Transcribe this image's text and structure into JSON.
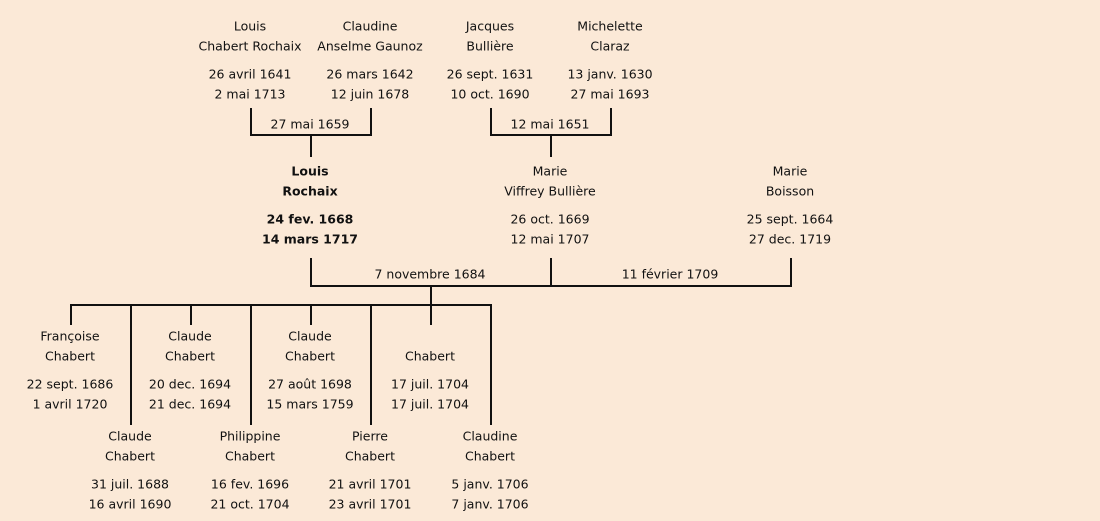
{
  "grandparents": [
    {
      "first": "Louis",
      "last": "Chabert Rochaix",
      "birth": "26 avril 1641",
      "death": "2 mai 1713"
    },
    {
      "first": "Claudine",
      "last": "Anselme Gaunoz",
      "birth": "26 mars 1642",
      "death": "12 juin 1678"
    },
    {
      "first": "Jacques",
      "last": "Bullière",
      "birth": "26 sept. 1631",
      "death": "10 oct. 1690"
    },
    {
      "first": "Michelette",
      "last": "Claraz",
      "birth": "13 janv. 1630",
      "death": "27 mai 1693"
    }
  ],
  "parents": [
    {
      "first": "Louis",
      "last": "Rochaix",
      "birth": "24 fev. 1668",
      "death": "14 mars 1717"
    },
    {
      "first": "Marie",
      "last": "Viffrey Bullière",
      "birth": "26 oct. 1669",
      "death": "12 mai 1707"
    },
    {
      "first": "Marie",
      "last": "Boisson",
      "birth": "25 sept. 1664",
      "death": "27 dec. 1719"
    }
  ],
  "marriages": [
    "27 mai 1659",
    "12 mai 1651",
    "7 novembre 1684",
    "11 février 1709"
  ],
  "children": [
    {
      "first": "Françoise",
      "last": "Chabert",
      "birth": "22 sept. 1686",
      "death": "1 avril 1720"
    },
    {
      "first": "Claude",
      "last": "Chabert",
      "birth": "31 juil. 1688",
      "death": "16 avril 1690"
    },
    {
      "first": "Claude",
      "last": "Chabert",
      "birth": "20 dec. 1694",
      "death": "21 dec. 1694"
    },
    {
      "first": "Philippine",
      "last": "Chabert",
      "birth": "16 fev. 1696",
      "death": "21 oct. 1704"
    },
    {
      "first": "Claude",
      "last": "Chabert",
      "birth": "27 août 1698",
      "death": "15 mars 1759"
    },
    {
      "first": "Pierre",
      "last": "Chabert",
      "birth": "21 avril 1701",
      "death": "23 avril 1701"
    },
    {
      "last": "Chabert",
      "birth": "17 juil. 1704",
      "death": "17 juil. 1704"
    },
    {
      "first": "Claudine",
      "last": "Chabert",
      "birth": "5 janv. 1706",
      "death": "7 janv. 1706"
    }
  ]
}
